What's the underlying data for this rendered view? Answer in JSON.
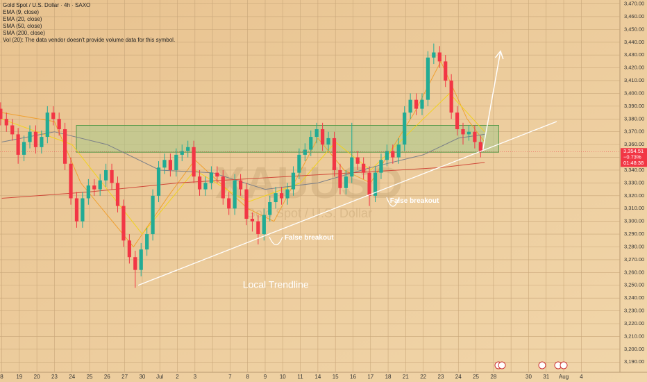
{
  "chart_data": {
    "type": "candlestick",
    "title": "Gold Spot / U.S. Dollar · 4h · SAXO",
    "legend_lines": [
      "Vol (20): The data vendor doesn't provide volume data for this symbol."
    ],
    "watermark": "XAUUSD",
    "watermark_subtitle": "Gold Spot / U.S. Dollar",
    "up_color": "#22ab94",
    "down_color": "#f23645",
    "categories": [
      "8",
      "19",
      "20",
      "23",
      "24",
      "25",
      "26",
      "27",
      "30",
      "Jul",
      "2",
      "3",
      null,
      "7",
      "8",
      "9",
      "10",
      "11",
      "14",
      "15",
      "16",
      "17",
      "18",
      "21",
      "22",
      "23",
      "24",
      "25",
      "28",
      null,
      "30",
      "31",
      "Aug",
      "4"
    ],
    "candles": {
      "open": [
        3392,
        3388,
        3380,
        3375,
        3368,
        3352,
        3362,
        3370,
        3358,
        3366,
        3385,
        3380,
        3372,
        3345,
        3318,
        3300,
        3318,
        3328,
        3325,
        3332,
        3340,
        3330,
        3312,
        3285,
        3272,
        3262,
        3278,
        3290,
        3320,
        3342,
        3348,
        3340,
        3352,
        3355,
        3358,
        3335,
        3325,
        3330,
        3338,
        3335,
        3318,
        3310,
        3332,
        3325,
        3302,
        3300,
        3290,
        3305,
        3315,
        3322,
        3318,
        3325,
        3338,
        3352,
        3356,
        3366,
        3372,
        3360,
        3365,
        3340,
        3326,
        3335,
        3350,
        3345,
        3338,
        3320,
        3338,
        3348,
        3355,
        3350,
        3360,
        3385,
        3395,
        3388,
        3395,
        3428,
        3432,
        3425,
        3410,
        3385,
        3372,
        3368,
        3370,
        3362
      ],
      "high": [
        3397,
        3393,
        3385,
        3380,
        3373,
        3367,
        3375,
        3375,
        3371,
        3390,
        3390,
        3385,
        3377,
        3350,
        3323,
        3323,
        3333,
        3333,
        3337,
        3345,
        3345,
        3335,
        3317,
        3290,
        3277,
        3283,
        3295,
        3325,
        3347,
        3353,
        3353,
        3357,
        3360,
        3363,
        3363,
        3340,
        3335,
        3343,
        3343,
        3340,
        3323,
        3337,
        3337,
        3330,
        3307,
        3305,
        3310,
        3320,
        3327,
        3327,
        3330,
        3343,
        3357,
        3361,
        3371,
        3377,
        3377,
        3370,
        3370,
        3345,
        3340,
        3377,
        3355,
        3350,
        3343,
        3343,
        3353,
        3360,
        3360,
        3365,
        3390,
        3400,
        3400,
        3400,
        3433,
        3439,
        3437,
        3430,
        3415,
        3390,
        3377,
        3375,
        3375,
        3367
      ],
      "low": [
        3383,
        3375,
        3370,
        3363,
        3345,
        3347,
        3357,
        3353,
        3353,
        3361,
        3375,
        3367,
        3340,
        3313,
        3295,
        3295,
        3313,
        3320,
        3320,
        3327,
        3325,
        3307,
        3280,
        3267,
        3248,
        3257,
        3273,
        3285,
        3315,
        3337,
        3335,
        3335,
        3347,
        3350,
        3330,
        3320,
        3320,
        3325,
        3330,
        3313,
        3305,
        3305,
        3320,
        3297,
        3292,
        3282,
        3285,
        3300,
        3310,
        3313,
        3313,
        3320,
        3333,
        3347,
        3351,
        3361,
        3355,
        3355,
        3335,
        3321,
        3321,
        3330,
        3340,
        3333,
        3312,
        3315,
        3333,
        3343,
        3345,
        3345,
        3355,
        3380,
        3383,
        3383,
        3390,
        3423,
        3420,
        3405,
        3380,
        3367,
        3360,
        3363,
        3357,
        3350
      ],
      "close": [
        3388,
        3380,
        3375,
        3368,
        3352,
        3362,
        3370,
        3358,
        3366,
        3385,
        3380,
        3372,
        3345,
        3318,
        3300,
        3318,
        3328,
        3325,
        3332,
        3340,
        3330,
        3312,
        3285,
        3272,
        3262,
        3278,
        3290,
        3320,
        3342,
        3348,
        3340,
        3352,
        3355,
        3358,
        3335,
        3325,
        3330,
        3338,
        3335,
        3318,
        3310,
        3332,
        3325,
        3302,
        3300,
        3290,
        3305,
        3315,
        3322,
        3318,
        3325,
        3338,
        3352,
        3356,
        3366,
        3372,
        3360,
        3365,
        3340,
        3326,
        3335,
        3350,
        3345,
        3338,
        3320,
        3338,
        3348,
        3355,
        3350,
        3360,
        3385,
        3395,
        3388,
        3395,
        3428,
        3432,
        3425,
        3410,
        3385,
        3372,
        3368,
        3370,
        3362,
        3355
      ]
    },
    "series": [
      {
        "name": "EMA (9, close)",
        "color": "#f0a030",
        "x": [
          0,
          3,
          4.5,
          7.5,
          9.5,
          11,
          14,
          15.5,
          18,
          19.5,
          21,
          23.5,
          25,
          26.5,
          27.5
        ],
        "values": [
          3385,
          3378,
          3330,
          3280,
          3320,
          3348,
          3310,
          3300,
          3365,
          3340,
          3330,
          3385,
          3425,
          3380,
          3362
        ]
      },
      {
        "name": "EMA (20, close)",
        "color": "#f2d21e",
        "x": [
          0,
          4,
          8,
          11,
          14,
          17,
          19,
          21,
          24,
          25.5,
          27.5
        ],
        "values": [
          3380,
          3360,
          3290,
          3340,
          3315,
          3330,
          3362,
          3340,
          3380,
          3400,
          3370
        ]
      },
      {
        "name": "SMA (50, close)",
        "color": "#7a7f88",
        "x": [
          0,
          3,
          6,
          9,
          12,
          15,
          18,
          21,
          24,
          26,
          27.5
        ],
        "values": [
          3362,
          3370,
          3360,
          3340,
          3338,
          3325,
          3330,
          3342,
          3352,
          3365,
          3368
        ]
      },
      {
        "name": "SMA (200, close)",
        "color": "#d04a3a",
        "x": [
          0,
          5,
          10,
          15,
          20,
          25,
          27.5
        ],
        "values": [
          3318,
          3323,
          3330,
          3334,
          3338,
          3342,
          3346
        ]
      }
    ],
    "ylim": [
      3182,
      3473
    ],
    "xlim": [
      -0.1,
      35.2
    ],
    "yticks": [
      {
        "value": 3470,
        "label": "3,470.00"
      },
      {
        "value": 3460,
        "label": "3,460.00"
      },
      {
        "value": 3450,
        "label": "3,450.00"
      },
      {
        "value": 3440,
        "label": "3,440.00"
      },
      {
        "value": 3430,
        "label": "3,430.00"
      },
      {
        "value": 3420,
        "label": "3,420.00"
      },
      {
        "value": 3410,
        "label": "3,410.00"
      },
      {
        "value": 3400,
        "label": "3,400.00"
      },
      {
        "value": 3390,
        "label": "3,390.00"
      },
      {
        "value": 3380,
        "label": "3,380.00"
      },
      {
        "value": 3370,
        "label": "3,370.00"
      },
      {
        "value": 3360,
        "label": "3,360.00"
      },
      {
        "value": 3350,
        "label": "3,350.00"
      },
      {
        "value": 3340,
        "label": "3,340.00"
      },
      {
        "value": 3330,
        "label": "3,330.00"
      },
      {
        "value": 3320,
        "label": "3,320.00"
      },
      {
        "value": 3310,
        "label": "3,310.00"
      },
      {
        "value": 3300,
        "label": "3,300.00"
      },
      {
        "value": 3290,
        "label": "3,290.00"
      },
      {
        "value": 3280,
        "label": "3,280.00"
      },
      {
        "value": 3270,
        "label": "3,270.00"
      },
      {
        "value": 3260,
        "label": "3,260.00"
      },
      {
        "value": 3250,
        "label": "3,250.00"
      },
      {
        "value": 3240,
        "label": "3,240.00"
      },
      {
        "value": 3230,
        "label": "3,230.00"
      },
      {
        "value": 3220,
        "label": "3,220.00"
      },
      {
        "value": 3210,
        "label": "3,210.00"
      },
      {
        "value": 3200,
        "label": "3,200.00"
      },
      {
        "value": 3190,
        "label": "3,190.00"
      }
    ],
    "grid": true,
    "last_price": {
      "value": 3354.51,
      "label": "3,354.51"
    },
    "last_change": "−0.73%",
    "countdown": "01:48:38",
    "zone": {
      "x": [
        4.25,
        28.3
      ],
      "values": [
        3354,
        3375
      ],
      "color": "#a8c98a"
    },
    "trendline": {
      "x": [
        7.77,
        31.6
      ],
      "values": [
        3250,
        3378
      ],
      "color": "#ffffff"
    },
    "arrow": {
      "x": [
        27.4,
        28.4
      ],
      "values": [
        3356,
        3433
      ],
      "color": "#ffffff"
    },
    "annotations": [
      {
        "text": "Local Trendline",
        "x": 15.6,
        "value": 3250
      },
      {
        "text": "False breakout",
        "x": 17.5,
        "value": 3287
      },
      {
        "text": "False breakout",
        "x": 23.5,
        "value": 3316
      }
    ]
  }
}
